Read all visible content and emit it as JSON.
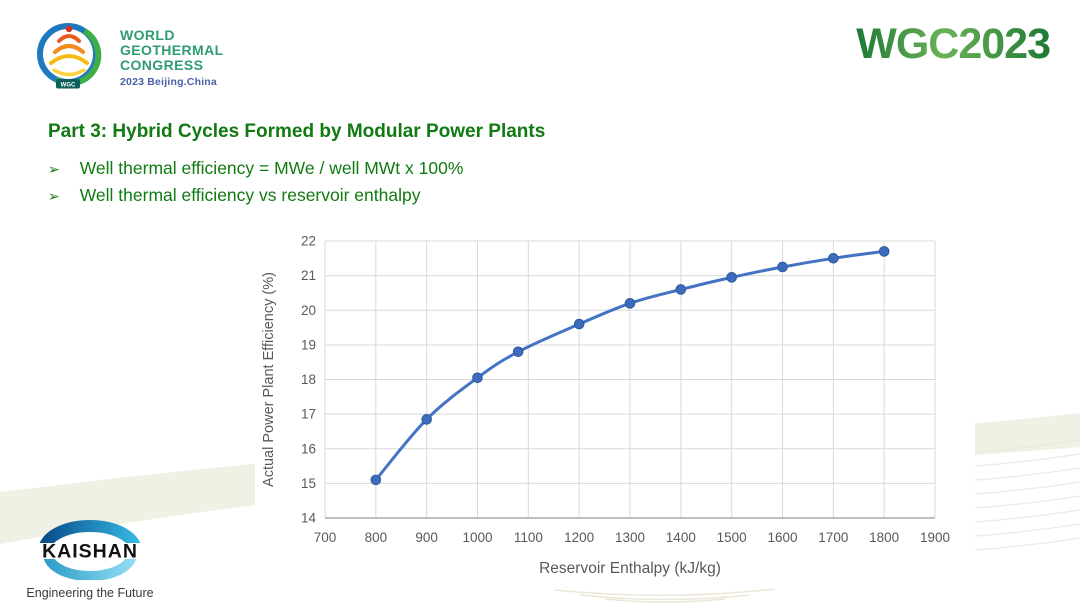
{
  "header": {
    "congress_logo": {
      "line1": "WORLD",
      "line2": "GEOTHERMAL",
      "line3": "CONGRESS",
      "subtitle": "2023 Beijing.China",
      "badge": "WGC"
    },
    "wordmark": "WGC2023"
  },
  "slide": {
    "title": "Part 3: Hybrid Cycles Formed by Modular Power Plants",
    "bullet_marker": "➢",
    "bullets": [
      "Well thermal efficiency = MWe / well MWt x 100%",
      "Well thermal efficiency vs reservoir enthalpy"
    ]
  },
  "chart_data": {
    "type": "line",
    "x": [
      800,
      900,
      1000,
      1080,
      1200,
      1300,
      1400,
      1500,
      1600,
      1700,
      1800
    ],
    "y": [
      15.1,
      16.85,
      18.05,
      18.8,
      19.6,
      20.2,
      20.6,
      20.95,
      21.25,
      21.5,
      21.7
    ],
    "xlabel": "Reservoir Enthalpy (kJ/kg)",
    "ylabel": "Actual Power Plant Efficiency (%)",
    "xlim": [
      700,
      1900
    ],
    "ylim": [
      14,
      22
    ],
    "x_ticks": [
      700,
      800,
      900,
      1000,
      1100,
      1200,
      1300,
      1400,
      1500,
      1600,
      1700,
      1800,
      1900
    ],
    "y_ticks": [
      14,
      15,
      16,
      17,
      18,
      19,
      20,
      21,
      22
    ],
    "grid": true,
    "legend": "none",
    "line_color": "#4472c4",
    "marker_color": "#3d6bbd",
    "marker_edge_color": "#2e5b9e",
    "grid_color": "#d9d9d9",
    "axis_line_color": "#9a9a9a",
    "text_color": "#595959"
  },
  "footer": {
    "brand": "KAISHAN",
    "tagline": "Engineering the Future"
  },
  "colors": {
    "title_green": "#117a12",
    "wordmark_green": "#1e7c36",
    "logo_teal": "#2f9c72",
    "logo_blue": "#4a60a8",
    "wave_beige": "#eef0e1"
  }
}
